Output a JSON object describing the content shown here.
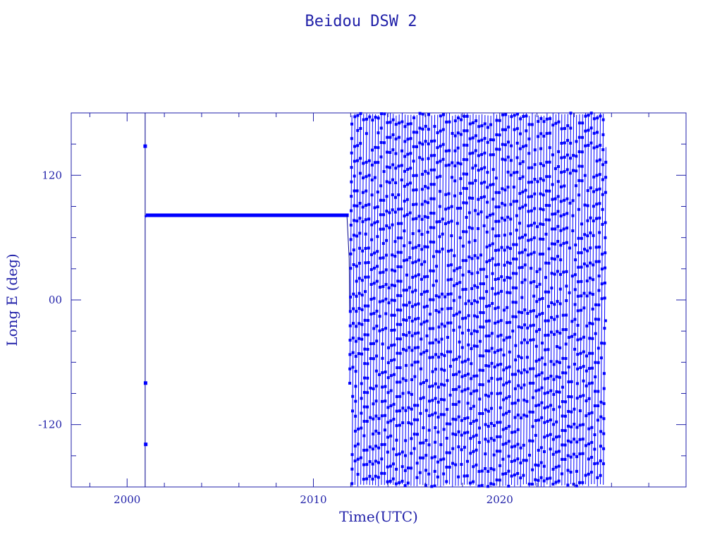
{
  "chart_data": {
    "type": "line",
    "title": "Beidou DSW 2",
    "xlabel": "Time(UTC)",
    "ylabel": "Long E (deg)",
    "xlim": [
      1997,
      2030
    ],
    "ylim": [
      -180,
      180
    ],
    "x_ticks": [
      2000,
      2010,
      2020
    ],
    "x_tick_labels": [
      "2000",
      "2010",
      "2020"
    ],
    "y_ticks": [
      -120,
      0,
      120
    ],
    "y_tick_labels": [
      "-120",
      "00",
      "120"
    ],
    "grid": false,
    "marker": "square",
    "colors": {
      "axis": "#1f1fa8",
      "series": "#0000ff",
      "line": "#00008b"
    },
    "segments": [
      {
        "name": "",
        "kind": "stationary",
        "x": [
          2000.95,
          2001.05,
          2001.1,
          2001.3,
          2005.0,
          2011.0,
          2011.8
        ],
        "y": [
          80,
          81,
          81.5,
          81.5,
          81.5,
          81.5,
          81.5
        ]
      },
      {
        "name": "",
        "kind": "launch-spikes",
        "x": [
          2000.97,
          2000.99,
          2000.99,
          2001.0
        ],
        "y": [
          148,
          103,
          -80,
          -139
        ]
      },
      {
        "name": "",
        "kind": "drift",
        "x_start": 2011.95,
        "x_end": 2025.7,
        "y_start": -80,
        "y_end": -20,
        "cycles_per_year": 6.3
      }
    ]
  }
}
